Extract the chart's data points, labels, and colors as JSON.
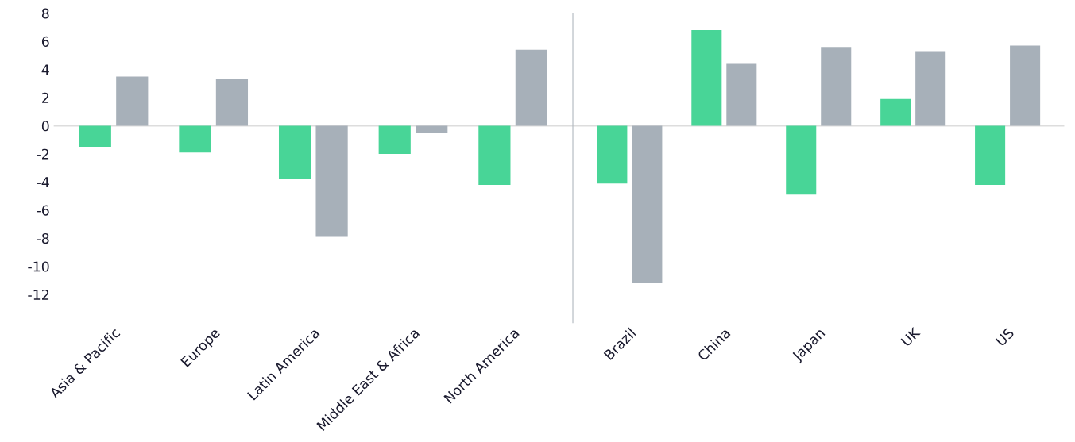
{
  "chart_data": [
    {
      "type": "bar",
      "categories": [
        "Asia & Pacific",
        "Europe",
        "Latin America",
        "Middle East & Africa",
        "North America"
      ],
      "series": [
        {
          "color": "#48d597",
          "values": [
            -1.5,
            -1.9,
            -3.8,
            -2.0,
            -4.2
          ]
        },
        {
          "color": "#a7b0b9",
          "values": [
            3.5,
            3.3,
            -7.9,
            -0.5,
            5.4
          ]
        }
      ],
      "ylim": [
        -14,
        8
      ],
      "yticks": [
        -12,
        -10,
        -8,
        -6,
        -4,
        -2,
        0,
        2,
        4,
        6,
        8
      ],
      "ref_lines": [
        {
          "axis": "y",
          "value": 0,
          "color": "#dddddd"
        }
      ]
    },
    {
      "type": "bar",
      "categories": [
        "Brazil",
        "China",
        "Japan",
        "UK",
        "US"
      ],
      "series": [
        {
          "color": "#48d597",
          "values": [
            -4.1,
            6.8,
            -4.9,
            1.9,
            -4.2
          ]
        },
        {
          "color": "#a7b0b9",
          "values": [
            -11.2,
            4.4,
            5.6,
            5.3,
            5.7
          ]
        }
      ],
      "ylim": [
        -14,
        8
      ],
      "tick_labels": "x",
      "ref_lines": [
        {
          "axis": "y",
          "value": 0,
          "color": "#dddddd"
        }
      ]
    }
  ]
}
